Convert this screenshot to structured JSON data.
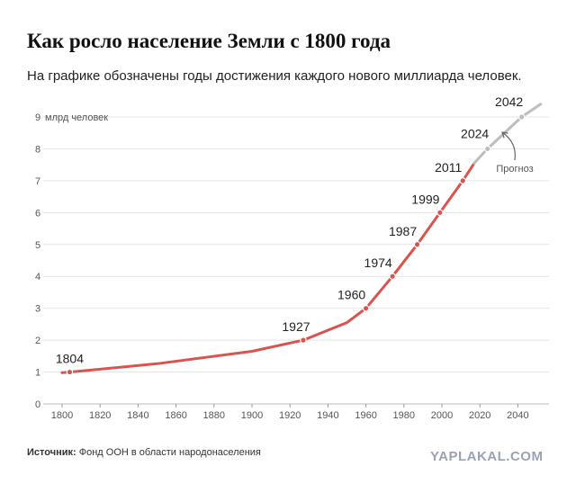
{
  "header": {
    "title": "Как росло население Земли с 1800 года",
    "subtitle": "На графике обозначены годы достижения каждого нового миллиарда человек."
  },
  "footer": {
    "source_label": "Источник:",
    "source_text": "Фонд ООН в области народонаселения",
    "watermark": "YAPLAKAL.COM"
  },
  "chart_data": {
    "type": "line",
    "ylabel": "млрд человек",
    "xlim": [
      1800,
      2055
    ],
    "ylim": [
      0,
      9
    ],
    "grid": true,
    "x_ticks": [
      1800,
      1820,
      1840,
      1860,
      1880,
      1900,
      1920,
      1940,
      1960,
      1980,
      2000,
      2020,
      2040
    ],
    "y_ticks": [
      0,
      1,
      2,
      3,
      4,
      5,
      6,
      7,
      8,
      9
    ],
    "series": [
      {
        "name": "",
        "style": "actual",
        "color": "#d9534f",
        "x": [
          1800,
          1804,
          1850,
          1900,
          1927,
          1950,
          1960,
          1974,
          1987,
          1999,
          2011,
          2017
        ],
        "y": [
          0.98,
          1.0,
          1.26,
          1.65,
          2.0,
          2.55,
          3.0,
          4.0,
          5.0,
          6.0,
          7.0,
          7.55
        ]
      },
      {
        "name": "",
        "style": "forecast",
        "color": "#bdbdbd",
        "x": [
          2017,
          2024,
          2042,
          2052
        ],
        "y": [
          7.55,
          8.0,
          9.0,
          9.4
        ]
      }
    ],
    "milestones": [
      {
        "year": "1804",
        "x": 1804,
        "y": 1,
        "forecast": false
      },
      {
        "year": "1927",
        "x": 1927,
        "y": 2,
        "forecast": false
      },
      {
        "year": "1960",
        "x": 1960,
        "y": 3,
        "forecast": false
      },
      {
        "year": "1974",
        "x": 1974,
        "y": 4,
        "forecast": false
      },
      {
        "year": "1987",
        "x": 1987,
        "y": 5,
        "forecast": false
      },
      {
        "year": "1999",
        "x": 1999,
        "y": 6,
        "forecast": false
      },
      {
        "year": "2011",
        "x": 2011,
        "y": 7,
        "forecast": false
      },
      {
        "year": "2024",
        "x": 2024,
        "y": 8,
        "forecast": true
      },
      {
        "year": "2042",
        "x": 2042,
        "y": 9,
        "forecast": true
      }
    ],
    "annotation": {
      "text": "Прогноз"
    }
  }
}
